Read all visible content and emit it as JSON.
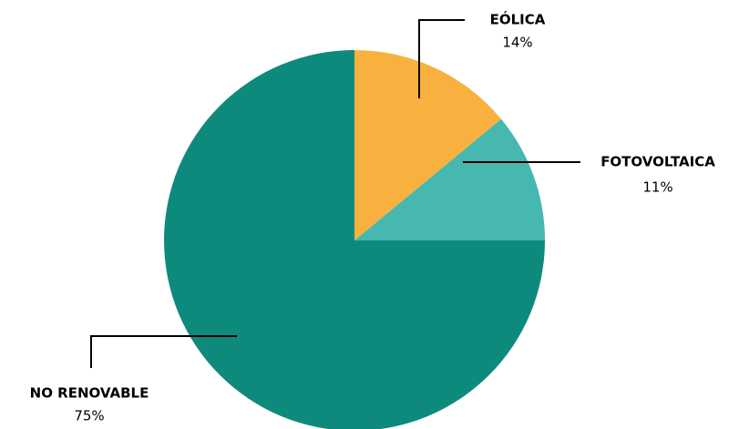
{
  "chart_data": {
    "type": "pie",
    "categories": [
      "EÓLICA",
      "FOTOVOLTAICA",
      "NO RENOVABLE"
    ],
    "values": [
      14,
      11,
      75
    ],
    "value_labels": [
      "14%",
      "11%",
      "75%"
    ],
    "colors": [
      "#f8b13f",
      "#46b8b0",
      "#0e8a7d"
    ]
  }
}
